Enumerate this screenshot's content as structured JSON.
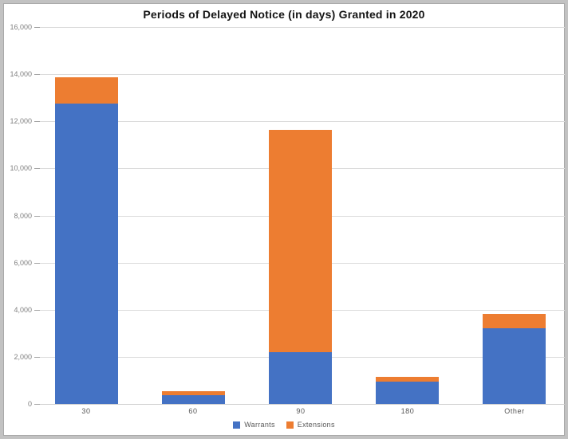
{
  "chart_data": {
    "type": "bar",
    "stacked": true,
    "title": "Periods of Delayed Notice (in days) Granted in 2020",
    "categories": [
      "30",
      "60",
      "90",
      "180",
      "Other"
    ],
    "series": [
      {
        "name": "Warrants",
        "color": "#4472C4",
        "values": [
          12750,
          375,
          2200,
          950,
          3225
        ]
      },
      {
        "name": "Extensions",
        "color": "#ED7D31",
        "values": [
          1100,
          165,
          9450,
          200,
          600
        ]
      }
    ],
    "totals": [
      13850,
      540,
      11650,
      1150,
      3825
    ],
    "xlabel": "",
    "ylabel": "",
    "ylim": [
      0,
      16000
    ],
    "ytick_step": 2000,
    "ytick_labels": [
      "0",
      "2,000",
      "4,000",
      "6,000",
      "8,000",
      "10,000",
      "12,000",
      "14,000",
      "16,000"
    ],
    "grid": true,
    "legend_position": "bottom"
  },
  "colors": {
    "gridline": "#dcdcdc",
    "zero_line": "#cfcfcf",
    "axis_text": "#7f7f7f",
    "category_text": "#555555",
    "title_text": "#141414",
    "frame_border": "#c2c2c2",
    "background": "#ffffff"
  }
}
